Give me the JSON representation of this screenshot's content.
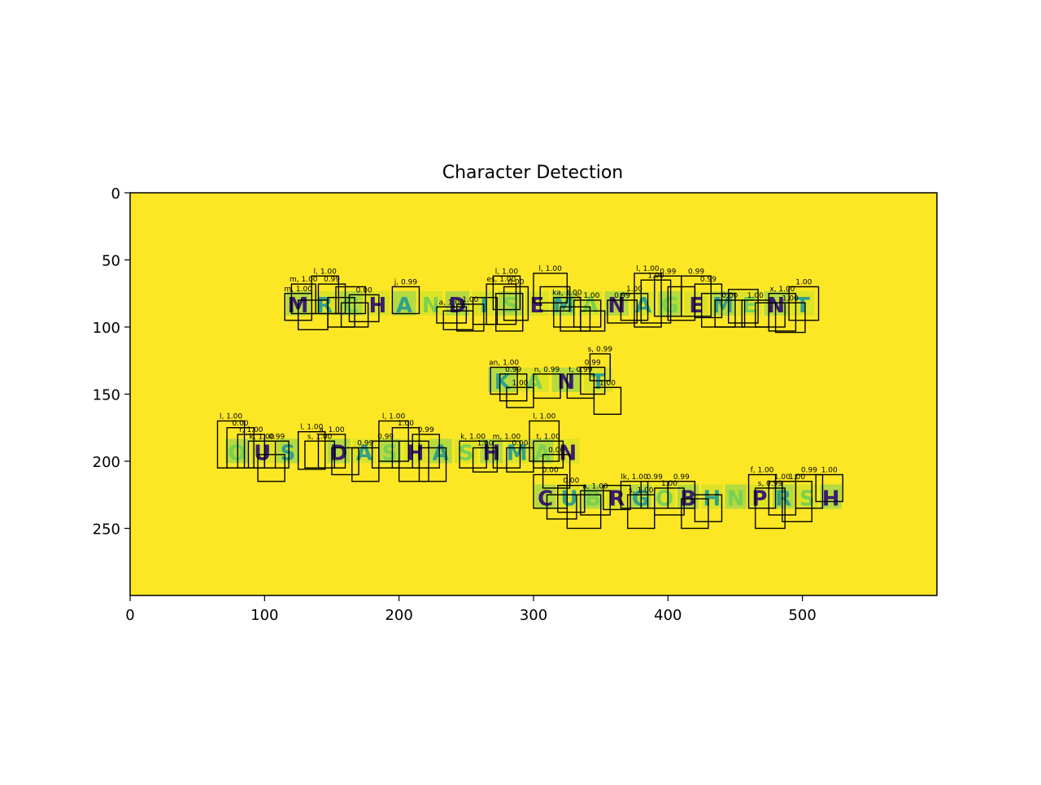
{
  "chart_data": {
    "type": "image",
    "title": "Character Detection",
    "xlabel": "",
    "ylabel": "",
    "xlim": [
      0,
      600
    ],
    "ylim": [
      300,
      0
    ],
    "xticks": [
      0,
      100,
      200,
      300,
      400,
      500
    ],
    "yticks": [
      0,
      50,
      100,
      150,
      200,
      250
    ],
    "grid": false,
    "colors": {
      "background": "#fde725",
      "text_dark": "#3b1c70",
      "text_mid": "#31a08b",
      "text_light": "#7ad151",
      "box": "#000000"
    },
    "image_lines": [
      {
        "text": "MRCHANDISEMANAGEMENT",
        "x0": 115,
        "x1": 510,
        "y": 83
      },
      {
        "text": "KANT",
        "x0": 265,
        "x1": 360,
        "y": 140
      },
      {
        "text": "OUS DASHASHMAN",
        "x0": 70,
        "x1": 335,
        "y": 193
      },
      {
        "text": "CUBRGOBHNPRSH",
        "x0": 300,
        "x1": 530,
        "y": 227
      }
    ],
    "detections": [
      {
        "x": 115,
        "y": 75,
        "w": 20,
        "h": 20,
        "label": "m, 1.00"
      },
      {
        "x": 120,
        "y": 68,
        "w": 18,
        "h": 22,
        "label": "m, 1.00"
      },
      {
        "x": 125,
        "y": 80,
        "w": 22,
        "h": 22,
        "label": ""
      },
      {
        "x": 135,
        "y": 62,
        "w": 20,
        "h": 28,
        "label": "l, 1.00"
      },
      {
        "x": 140,
        "y": 68,
        "w": 20,
        "h": 22,
        "label": "0.99"
      },
      {
        "x": 147,
        "y": 78,
        "w": 20,
        "h": 22,
        "label": ""
      },
      {
        "x": 153,
        "y": 70,
        "w": 22,
        "h": 20,
        "label": ""
      },
      {
        "x": 157,
        "y": 82,
        "w": 20,
        "h": 18,
        "label": ""
      },
      {
        "x": 163,
        "y": 76,
        "w": 22,
        "h": 20,
        "label": "0.00"
      },
      {
        "x": 195,
        "y": 70,
        "w": 20,
        "h": 20,
        "label": "j, 0.99"
      },
      {
        "x": 228,
        "y": 85,
        "w": 22,
        "h": 12,
        "label": "a, 1.00"
      },
      {
        "x": 233,
        "y": 88,
        "w": 22,
        "h": 14,
        "label": ""
      },
      {
        "x": 243,
        "y": 83,
        "w": 20,
        "h": 20,
        "label": "1.00"
      },
      {
        "x": 255,
        "y": 78,
        "w": 18,
        "h": 20,
        "label": ""
      },
      {
        "x": 265,
        "y": 68,
        "w": 22,
        "h": 30,
        "label": "es, 1.00"
      },
      {
        "x": 270,
        "y": 62,
        "w": 20,
        "h": 25,
        "label": "l, 1.00"
      },
      {
        "x": 272,
        "y": 75,
        "w": 20,
        "h": 28,
        "label": ""
      },
      {
        "x": 278,
        "y": 70,
        "w": 18,
        "h": 25,
        "label": "0.00"
      },
      {
        "x": 300,
        "y": 60,
        "w": 25,
        "h": 22,
        "label": "l, 1.00"
      },
      {
        "x": 305,
        "y": 70,
        "w": 22,
        "h": 18,
        "label": ""
      },
      {
        "x": 315,
        "y": 78,
        "w": 20,
        "h": 22,
        "label": "ka, 1.00"
      },
      {
        "x": 320,
        "y": 85,
        "w": 22,
        "h": 18,
        "label": ""
      },
      {
        "x": 330,
        "y": 80,
        "w": 20,
        "h": 20,
        "label": "s, 1.00"
      },
      {
        "x": 335,
        "y": 88,
        "w": 18,
        "h": 15,
        "label": ""
      },
      {
        "x": 355,
        "y": 80,
        "w": 22,
        "h": 17,
        "label": "0.99"
      },
      {
        "x": 365,
        "y": 75,
        "w": 20,
        "h": 20,
        "label": "1.00"
      },
      {
        "x": 375,
        "y": 60,
        "w": 20,
        "h": 40,
        "label": "l, 1.00"
      },
      {
        "x": 380,
        "y": 65,
        "w": 22,
        "h": 32,
        "label": "1.00"
      },
      {
        "x": 390,
        "y": 62,
        "w": 20,
        "h": 30,
        "label": "0.99"
      },
      {
        "x": 400,
        "y": 70,
        "w": 20,
        "h": 25,
        "label": ""
      },
      {
        "x": 410,
        "y": 62,
        "w": 22,
        "h": 30,
        "label": "0.99"
      },
      {
        "x": 420,
        "y": 68,
        "w": 20,
        "h": 25,
        "label": "0.99"
      },
      {
        "x": 425,
        "y": 75,
        "w": 25,
        "h": 25,
        "label": ""
      },
      {
        "x": 435,
        "y": 80,
        "w": 22,
        "h": 20,
        "label": "0.00"
      },
      {
        "x": 445,
        "y": 72,
        "w": 22,
        "h": 25,
        "label": ""
      },
      {
        "x": 455,
        "y": 80,
        "w": 20,
        "h": 20,
        "label": "1.00"
      },
      {
        "x": 465,
        "y": 82,
        "w": 22,
        "h": 18,
        "label": ""
      },
      {
        "x": 475,
        "y": 75,
        "w": 20,
        "h": 28,
        "label": "x, 1.00"
      },
      {
        "x": 480,
        "y": 82,
        "w": 22,
        "h": 22,
        "label": "1.00"
      },
      {
        "x": 490,
        "y": 70,
        "w": 22,
        "h": 25,
        "label": "1.00"
      },
      {
        "x": 268,
        "y": 130,
        "w": 20,
        "h": 20,
        "label": "an, 1.00"
      },
      {
        "x": 275,
        "y": 135,
        "w": 20,
        "h": 20,
        "label": "0.99"
      },
      {
        "x": 280,
        "y": 145,
        "w": 20,
        "h": 15,
        "label": "1.00"
      },
      {
        "x": 300,
        "y": 135,
        "w": 20,
        "h": 18,
        "label": "n, 0.99"
      },
      {
        "x": 325,
        "y": 135,
        "w": 20,
        "h": 18,
        "label": "t, 0.99"
      },
      {
        "x": 335,
        "y": 130,
        "w": 18,
        "h": 20,
        "label": "0.99"
      },
      {
        "x": 342,
        "y": 120,
        "w": 15,
        "h": 20,
        "label": "s, 0.99"
      },
      {
        "x": 345,
        "y": 145,
        "w": 20,
        "h": 20,
        "label": "1.00"
      },
      {
        "x": 65,
        "y": 170,
        "w": 20,
        "h": 35,
        "label": "l, 1.00"
      },
      {
        "x": 72,
        "y": 175,
        "w": 20,
        "h": 30,
        "label": "0.00"
      },
      {
        "x": 80,
        "y": 180,
        "w": 20,
        "h": 25,
        "label": "r, 1.00"
      },
      {
        "x": 88,
        "y": 185,
        "w": 20,
        "h": 20,
        "label": "k, 1.00"
      },
      {
        "x": 95,
        "y": 195,
        "w": 20,
        "h": 20,
        "label": ""
      },
      {
        "x": 100,
        "y": 185,
        "w": 18,
        "h": 20,
        "label": "0.99"
      },
      {
        "x": 125,
        "y": 178,
        "w": 20,
        "h": 28,
        "label": "l, 1.00"
      },
      {
        "x": 130,
        "y": 185,
        "w": 22,
        "h": 20,
        "label": "s, 1.00"
      },
      {
        "x": 140,
        "y": 180,
        "w": 20,
        "h": 25,
        "label": "a, 1.00"
      },
      {
        "x": 150,
        "y": 190,
        "w": 20,
        "h": 20,
        "label": ""
      },
      {
        "x": 165,
        "y": 190,
        "w": 20,
        "h": 25,
        "label": "0.99"
      },
      {
        "x": 180,
        "y": 185,
        "w": 20,
        "h": 20,
        "label": "0.99"
      },
      {
        "x": 185,
        "y": 170,
        "w": 22,
        "h": 30,
        "label": "l, 1.00"
      },
      {
        "x": 195,
        "y": 175,
        "w": 20,
        "h": 30,
        "label": "1.00"
      },
      {
        "x": 200,
        "y": 185,
        "w": 22,
        "h": 30,
        "label": ""
      },
      {
        "x": 210,
        "y": 180,
        "w": 20,
        "h": 25,
        "label": "0.99"
      },
      {
        "x": 215,
        "y": 190,
        "w": 20,
        "h": 25,
        "label": ""
      },
      {
        "x": 245,
        "y": 185,
        "w": 20,
        "h": 20,
        "label": "k, 1.00"
      },
      {
        "x": 255,
        "y": 190,
        "w": 18,
        "h": 18,
        "label": "1.00"
      },
      {
        "x": 270,
        "y": 185,
        "w": 20,
        "h": 20,
        "label": "m, 1.00"
      },
      {
        "x": 280,
        "y": 190,
        "w": 20,
        "h": 18,
        "label": "0.00"
      },
      {
        "x": 297,
        "y": 170,
        "w": 22,
        "h": 30,
        "label": "l, 1.00"
      },
      {
        "x": 300,
        "y": 185,
        "w": 22,
        "h": 20,
        "label": "t, 1.00"
      },
      {
        "x": 307,
        "y": 195,
        "w": 20,
        "h": 25,
        "label": "0.00"
      },
      {
        "x": 300,
        "y": 210,
        "w": 25,
        "h": 25,
        "label": "0.00"
      },
      {
        "x": 310,
        "y": 225,
        "w": 22,
        "h": 18,
        "label": ""
      },
      {
        "x": 318,
        "y": 218,
        "w": 20,
        "h": 20,
        "label": "0.00"
      },
      {
        "x": 325,
        "y": 225,
        "w": 25,
        "h": 25,
        "label": ""
      },
      {
        "x": 335,
        "y": 222,
        "w": 22,
        "h": 18,
        "label": "a, 1.00"
      },
      {
        "x": 352,
        "y": 218,
        "w": 20,
        "h": 18,
        "label": ""
      },
      {
        "x": 365,
        "y": 215,
        "w": 20,
        "h": 20,
        "label": "lk, 1.00"
      },
      {
        "x": 370,
        "y": 225,
        "w": 20,
        "h": 25,
        "label": "s, 1.00"
      },
      {
        "x": 380,
        "y": 215,
        "w": 20,
        "h": 20,
        "label": "0.99"
      },
      {
        "x": 390,
        "y": 220,
        "w": 22,
        "h": 20,
        "label": "1.00"
      },
      {
        "x": 400,
        "y": 215,
        "w": 20,
        "h": 20,
        "label": "0.99"
      },
      {
        "x": 410,
        "y": 228,
        "w": 20,
        "h": 22,
        "label": ""
      },
      {
        "x": 420,
        "y": 225,
        "w": 20,
        "h": 20,
        "label": ""
      },
      {
        "x": 460,
        "y": 210,
        "w": 20,
        "h": 25,
        "label": "f, 1.00"
      },
      {
        "x": 465,
        "y": 220,
        "w": 22,
        "h": 30,
        "label": "s, 0.99"
      },
      {
        "x": 475,
        "y": 215,
        "w": 20,
        "h": 25,
        "label": "1.00"
      },
      {
        "x": 485,
        "y": 215,
        "w": 22,
        "h": 30,
        "label": "1.00"
      },
      {
        "x": 495,
        "y": 210,
        "w": 20,
        "h": 25,
        "label": "0.99"
      },
      {
        "x": 510,
        "y": 210,
        "w": 20,
        "h": 20,
        "label": "1.00"
      }
    ]
  }
}
